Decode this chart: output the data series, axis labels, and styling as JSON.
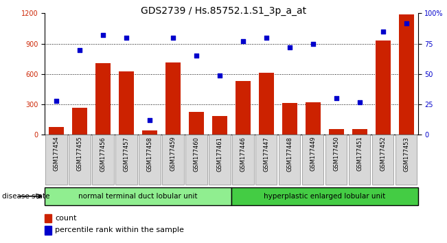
{
  "title": "GDS2739 / Hs.85752.1.S1_3p_a_at",
  "categories": [
    "GSM177454",
    "GSM177455",
    "GSM177456",
    "GSM177457",
    "GSM177458",
    "GSM177459",
    "GSM177460",
    "GSM177461",
    "GSM177446",
    "GSM177447",
    "GSM177448",
    "GSM177449",
    "GSM177450",
    "GSM177451",
    "GSM177452",
    "GSM177453"
  ],
  "bar_values": [
    75,
    265,
    710,
    630,
    45,
    715,
    230,
    185,
    530,
    610,
    315,
    320,
    55,
    55,
    930,
    1190
  ],
  "percentile_values": [
    28,
    70,
    82,
    80,
    12,
    80,
    65,
    49,
    77,
    80,
    72,
    75,
    30,
    27,
    85,
    92
  ],
  "bar_color": "#cc2200",
  "dot_color": "#0000cc",
  "ylim_left": [
    0,
    1200
  ],
  "ylim_right": [
    0,
    100
  ],
  "yticks_left": [
    0,
    300,
    600,
    900,
    1200
  ],
  "yticks_right": [
    0,
    25,
    50,
    75,
    100
  ],
  "yticklabels_right": [
    "0",
    "25",
    "50",
    "75",
    "100%"
  ],
  "group1_label": "normal terminal duct lobular unit",
  "group2_label": "hyperplastic enlarged lobular unit",
  "group1_count": 8,
  "group2_count": 8,
  "group1_color": "#90ee90",
  "group2_color": "#44cc44",
  "disease_state_label": "disease state",
  "legend_bar_label": "count",
  "legend_dot_label": "percentile rank within the sample",
  "title_fontsize": 10,
  "tick_fontsize": 7,
  "label_fontsize": 8
}
